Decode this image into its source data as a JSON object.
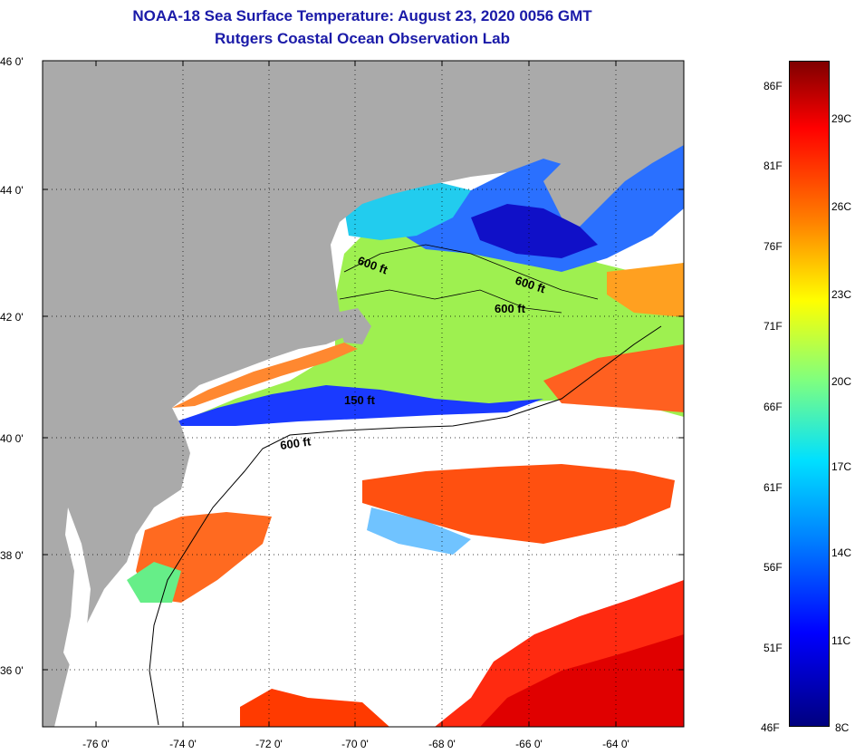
{
  "title": {
    "line1": "NOAA-18 Sea Surface Temperature:  August 23, 2020 0056 GMT",
    "line2": "Rutgers Coastal Ocean Observation Lab"
  },
  "map": {
    "lat_labels": [
      "46 0'",
      "44 0'",
      "42 0'",
      "40 0'",
      "38 0'",
      "36 0'"
    ],
    "lon_labels": [
      "-76 0'",
      "-74 0'",
      "-72 0'",
      "-70 0'",
      "-68 0'",
      "-66 0'",
      "-64 0'"
    ],
    "isobath_labels": [
      "600 ft",
      "600 ft",
      "600 ft",
      "150 ft",
      "600 ft"
    ],
    "colors": {
      "land": "#aaaaaa",
      "cloud": "#ffffff"
    }
  },
  "colorbar": {
    "fahrenheit": [
      "86F",
      "81F",
      "76F",
      "71F",
      "66F",
      "61F",
      "56F",
      "51F",
      "46F"
    ],
    "celsius": [
      "29C",
      "26C",
      "23C",
      "20C",
      "17C",
      "14C",
      "11C",
      "8C"
    ]
  }
}
